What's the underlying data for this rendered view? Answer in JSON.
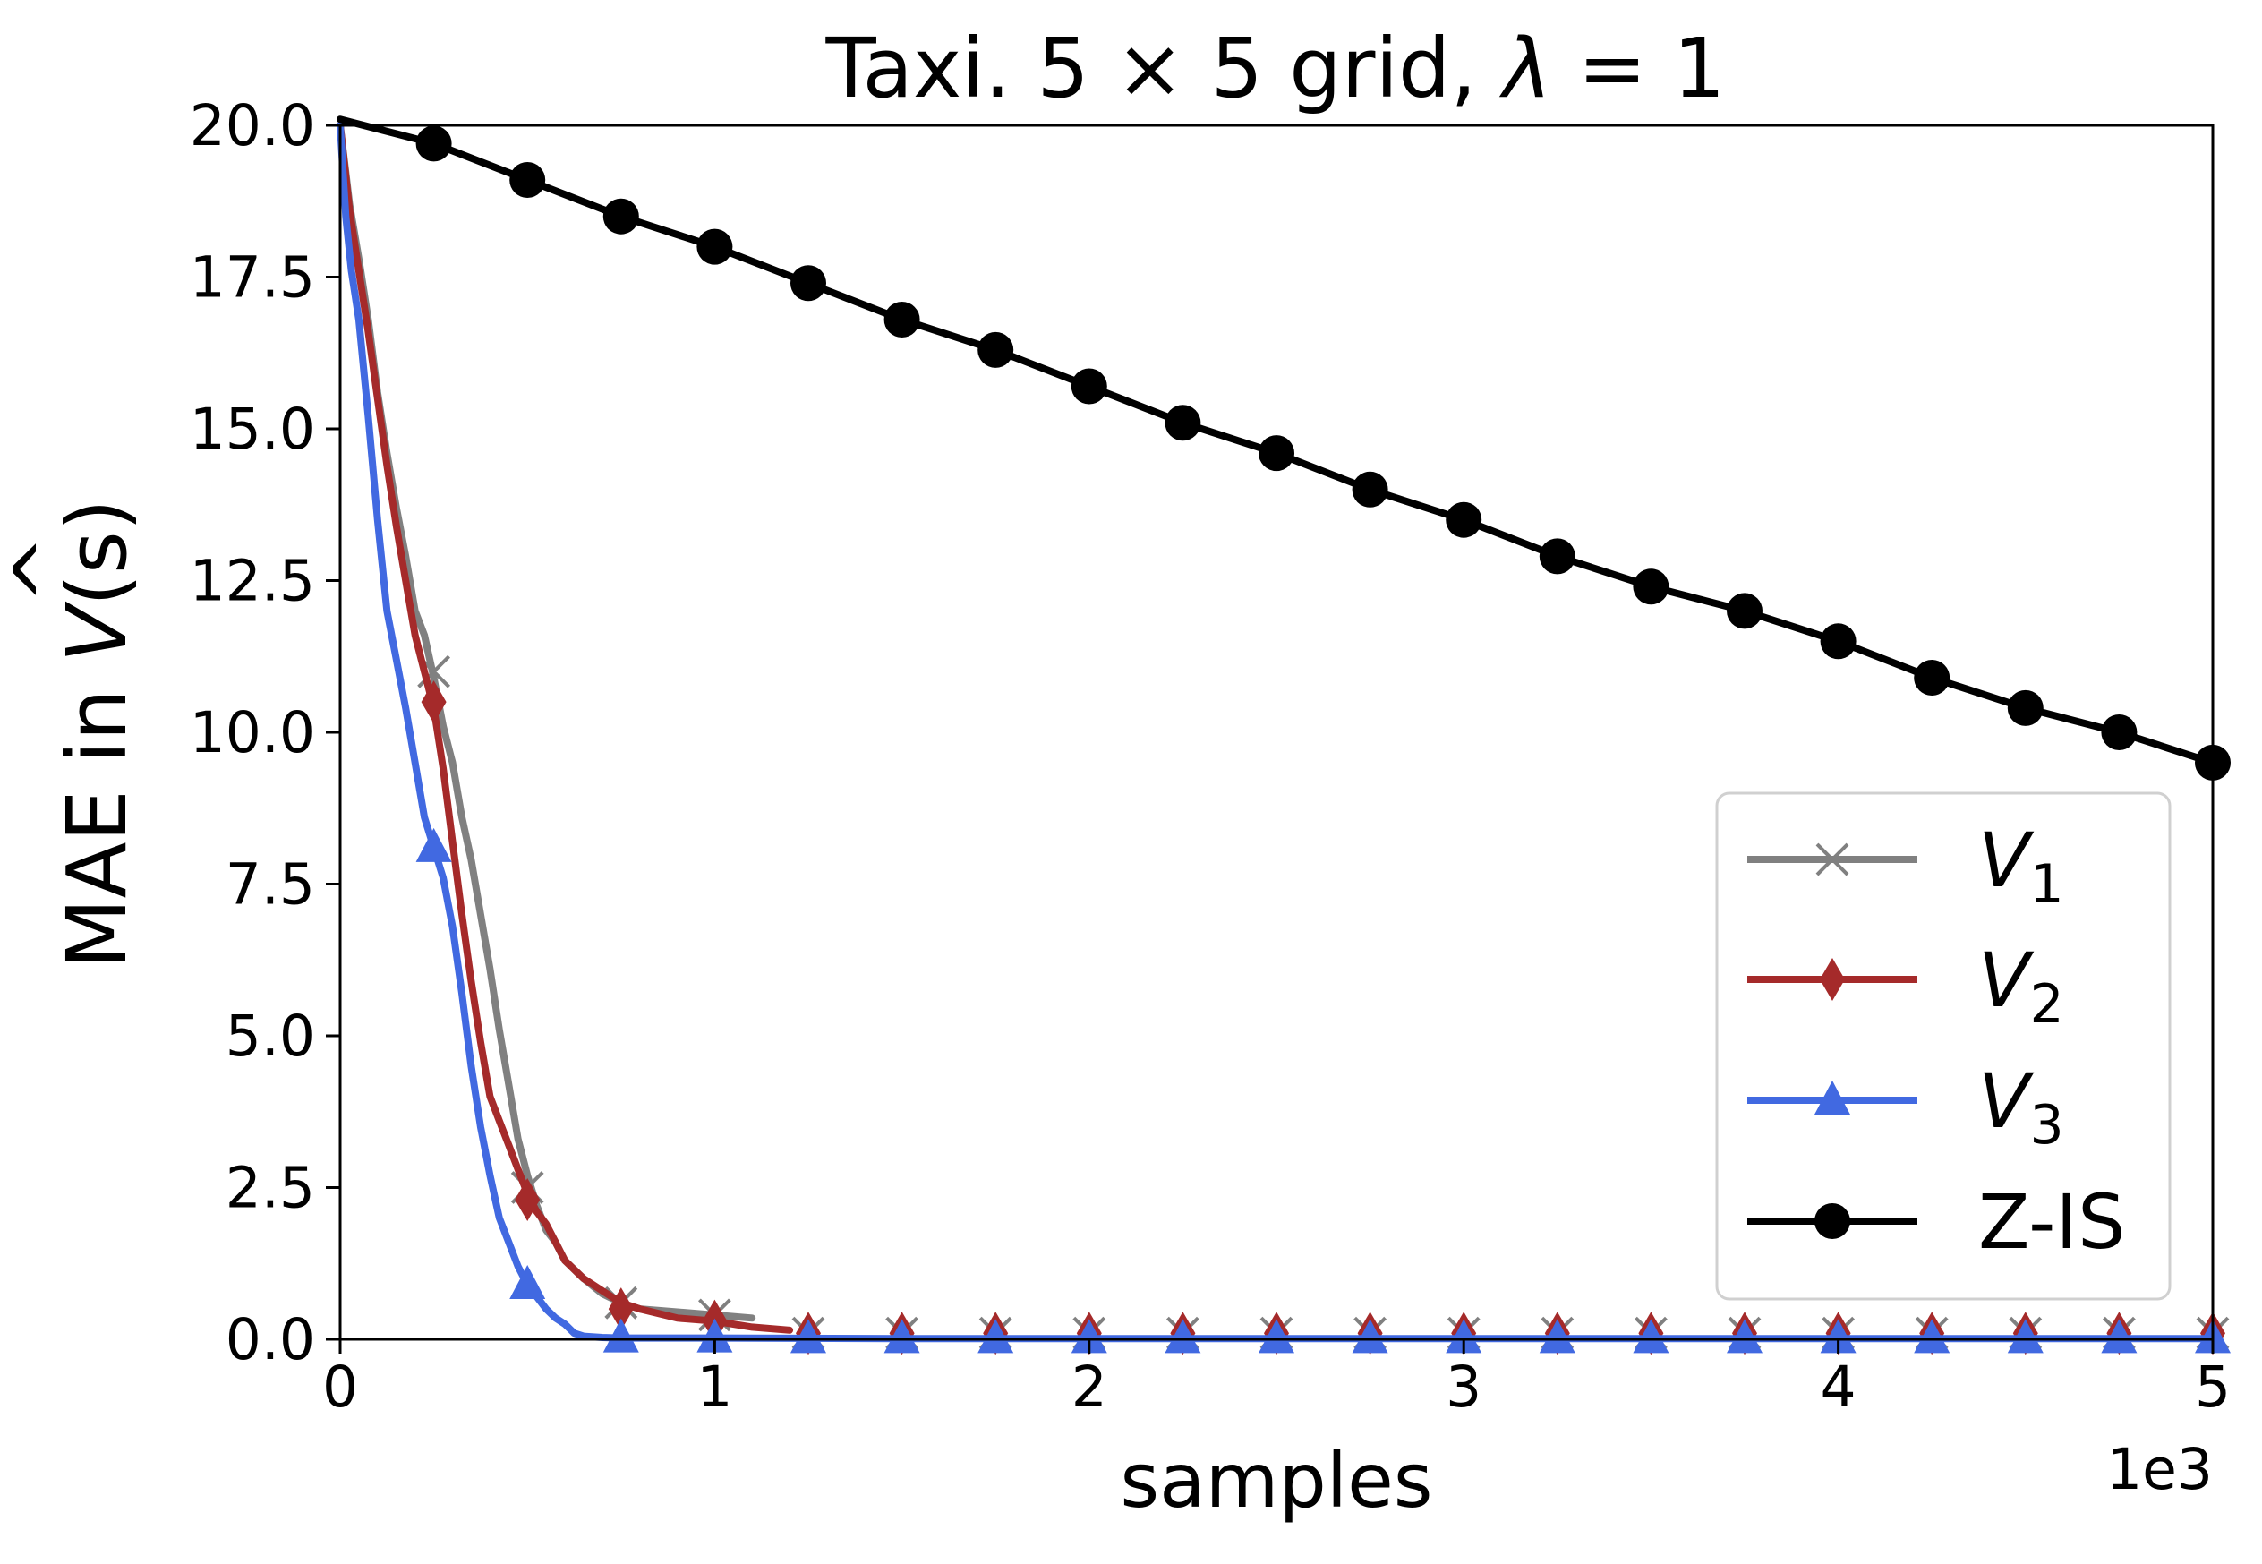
{
  "chart_data": {
    "type": "line",
    "title_prefix": "Taxi. 5 × 5 grid, ",
    "title_symbol": "λ",
    "title_suffix": " = 1",
    "xlabel": "samples",
    "ylabel_prefix": "MAE in ",
    "ylabel_symbol": "V",
    "ylabel_hat": "^",
    "ylabel_suffix": "(s)",
    "x_exponent_label": "1e3",
    "xlim": [
      0,
      5000
    ],
    "ylim": [
      0,
      20
    ],
    "x_ticks": [
      0,
      1000,
      2000,
      3000,
      4000,
      5000
    ],
    "x_tick_labels": [
      "0",
      "1",
      "2",
      "3",
      "4",
      "5"
    ],
    "y_ticks": [
      0,
      2.5,
      5,
      7.5,
      10,
      12.5,
      15,
      17.5,
      20
    ],
    "y_tick_labels": [
      "0.0",
      "2.5",
      "5.0",
      "7.5",
      "10.0",
      "12.5",
      "15.0",
      "17.5",
      "20.0"
    ],
    "grid": false,
    "legend_position": "lower right",
    "series": [
      {
        "name": "V",
        "name_sub": "1",
        "color": "#808080",
        "marker": "x",
        "x": [
          0,
          25,
          50,
          75,
          100,
          125,
          150,
          175,
          200,
          225,
          250,
          275,
          300,
          325,
          350,
          375,
          400,
          425,
          450,
          475,
          500,
          525,
          550,
          575,
          600,
          650,
          700,
          750,
          800,
          900,
          1000,
          1100
        ],
        "y": [
          20.0,
          18.7,
          17.8,
          16.8,
          15.6,
          14.6,
          13.7,
          12.9,
          12.0,
          11.6,
          10.9,
          10.1,
          9.5,
          8.6,
          7.9,
          7.0,
          6.1,
          5.1,
          4.2,
          3.3,
          2.7,
          2.2,
          1.8,
          1.6,
          1.3,
          1.0,
          0.75,
          0.6,
          0.5,
          0.45,
          0.4,
          0.35
        ],
        "marker_x": [
          250,
          500,
          750,
          1000,
          1250,
          1500,
          1750,
          2000,
          2250,
          2500,
          2750,
          3000,
          3250,
          3500,
          3750,
          4000,
          4250,
          4500,
          4750,
          5000
        ],
        "marker_y": [
          11.0,
          2.5,
          0.6,
          0.4,
          0.1,
          0.1,
          0.1,
          0.1,
          0.1,
          0.1,
          0.1,
          0.1,
          0.1,
          0.1,
          0.1,
          0.1,
          0.1,
          0.1,
          0.1,
          0.1
        ]
      },
      {
        "name": "V",
        "name_sub": "2",
        "color": "#a52a2a",
        "marker": "diamond",
        "x": [
          0,
          25,
          50,
          75,
          100,
          125,
          150,
          175,
          200,
          225,
          250,
          275,
          300,
          325,
          350,
          375,
          400,
          425,
          450,
          475,
          500,
          525,
          550,
          575,
          600,
          650,
          700,
          750,
          800,
          900,
          1000,
          1100,
          1200
        ],
        "y": [
          20.0,
          18.6,
          17.6,
          16.6,
          15.5,
          14.4,
          13.4,
          12.5,
          11.6,
          11.0,
          10.4,
          9.4,
          8.2,
          7.0,
          5.9,
          4.9,
          4.0,
          3.6,
          3.2,
          2.8,
          2.4,
          2.1,
          1.9,
          1.6,
          1.3,
          1.0,
          0.8,
          0.6,
          0.5,
          0.35,
          0.3,
          0.2,
          0.15
        ],
        "marker_x": [
          250,
          500,
          750,
          1000,
          1250,
          1500,
          1750,
          2000,
          2250,
          2500,
          2750,
          3000,
          3250,
          3500,
          3750,
          4000,
          4250,
          4500,
          4750,
          5000
        ],
        "marker_y": [
          10.5,
          2.3,
          0.5,
          0.3,
          0.1,
          0.1,
          0.1,
          0.1,
          0.1,
          0.1,
          0.1,
          0.1,
          0.1,
          0.1,
          0.1,
          0.1,
          0.1,
          0.1,
          0.1,
          0.1
        ]
      },
      {
        "name": "V",
        "name_sub": "3",
        "color": "#4169e1",
        "marker": "triangle",
        "x": [
          0,
          15,
          30,
          50,
          75,
          100,
          125,
          150,
          175,
          200,
          225,
          250,
          275,
          300,
          325,
          350,
          375,
          400,
          425,
          450,
          475,
          500,
          525,
          550,
          575,
          600,
          625,
          650,
          700,
          750,
          800,
          1000,
          1500,
          2000,
          3000,
          5000
        ],
        "y": [
          20.0,
          18.5,
          17.6,
          16.8,
          15.2,
          13.5,
          12.0,
          11.2,
          10.4,
          9.5,
          8.6,
          8.1,
          7.6,
          6.8,
          5.7,
          4.5,
          3.5,
          2.7,
          2.0,
          1.6,
          1.2,
          0.9,
          0.7,
          0.5,
          0.35,
          0.25,
          0.1,
          0.05,
          0.03,
          0.02,
          0.02,
          0.02,
          0.01,
          0.01,
          0.01,
          0.01
        ],
        "marker_x": [
          250,
          500,
          750,
          1000,
          1250,
          1500,
          1750,
          2000,
          2250,
          2500,
          2750,
          3000,
          3250,
          3500,
          3750,
          4000,
          4250,
          4500,
          4750,
          5000
        ],
        "marker_y": [
          8.1,
          0.9,
          0.02,
          0.02,
          0.01,
          0.01,
          0.01,
          0.01,
          0.01,
          0.01,
          0.01,
          0.01,
          0.01,
          0.01,
          0.01,
          0.01,
          0.01,
          0.01,
          0.01,
          0.01
        ]
      },
      {
        "name": "Z-IS",
        "name_sub": "",
        "color": "#000000",
        "marker": "circle",
        "x": [
          0,
          250,
          500,
          750,
          1000,
          1250,
          1500,
          1750,
          2000,
          2250,
          2500,
          2750,
          3000,
          3250,
          3500,
          3750,
          4000,
          4250,
          4500,
          4750,
          5000
        ],
        "y": [
          20.1,
          19.7,
          19.1,
          18.5,
          18.0,
          17.4,
          16.8,
          16.3,
          15.7,
          15.1,
          14.6,
          14.0,
          13.5,
          12.9,
          12.4,
          12.0,
          11.5,
          10.9,
          10.4,
          10.0,
          9.5
        ],
        "marker_x": [
          250,
          500,
          750,
          1000,
          1250,
          1500,
          1750,
          2000,
          2250,
          2500,
          2750,
          3000,
          3250,
          3500,
          3750,
          4000,
          4250,
          4500,
          4750,
          5000
        ],
        "marker_y": [
          19.7,
          19.1,
          18.5,
          18.0,
          17.4,
          16.8,
          16.3,
          15.7,
          15.1,
          14.6,
          14.0,
          13.5,
          12.9,
          12.4,
          12.0,
          11.5,
          10.9,
          10.4,
          10.0,
          9.5
        ]
      }
    ]
  }
}
